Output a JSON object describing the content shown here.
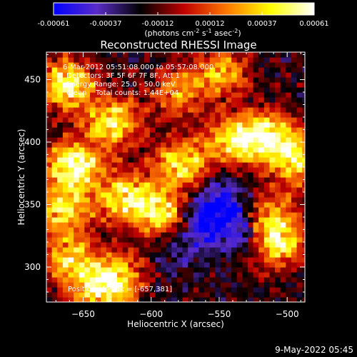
{
  "chart_data": {
    "type": "heatmap",
    "title": "Reconstructed RHESSI Image",
    "colorbar": {
      "ticks": [
        "-0.00061",
        "-0.00037",
        "-0.00012",
        "0.00012",
        "0.00037",
        "0.00061"
      ],
      "range": [
        -0.00061,
        0.00061
      ],
      "unit_label": {
        "p1": "(photons cm",
        "sup1": "-2",
        "p2": " s",
        "sup2": "-1",
        "p3": " asec",
        "sup3": "-2",
        "p4": ")"
      },
      "colors": [
        "#0000ff",
        "#5a2cc8",
        "#000000",
        "#c00000",
        "#ff7a00",
        "#ffff00",
        "#ffffff"
      ]
    },
    "xlabel": "Heliocentric X (arcsec)",
    "ylabel": "Heliocentric Y (arcsec)",
    "xlim": [
      -677,
      -487
    ],
    "ylim": [
      272,
      472
    ],
    "xticks": [
      -650,
      -600,
      -550,
      -500
    ],
    "yticks": [
      300,
      350,
      400,
      450
    ],
    "annotations": [
      "6-Mar-2012 05:51:08.000 to 05:57:08.000",
      "Detectors: 3F 5F 6F 7F 8F, Att 1",
      "Energy Range: 25.0 - 50.0 keV",
      "Clean    Total counts: 1.44E+04"
    ],
    "peak_label": "Position of Peak = [-657,381]",
    "peak": [
      -657,
      381
    ],
    "grid_resolution_arcsec": 4,
    "hot_spots": [
      {
        "x": -657,
        "y": 381,
        "v": 0.00061
      },
      {
        "x": -662,
        "y": 446,
        "v": 0.00052
      },
      {
        "x": -628,
        "y": 416,
        "v": 0.00045
      },
      {
        "x": -664,
        "y": 346,
        "v": 0.00041
      },
      {
        "x": -620,
        "y": 356,
        "v": 0.00043
      },
      {
        "x": -592,
        "y": 344,
        "v": 0.00047
      },
      {
        "x": -578,
        "y": 384,
        "v": 0.00042
      },
      {
        "x": -540,
        "y": 402,
        "v": 0.00039
      },
      {
        "x": -514,
        "y": 404,
        "v": 0.0005
      },
      {
        "x": -492,
        "y": 386,
        "v": 0.00036
      },
      {
        "x": -507,
        "y": 318,
        "v": 0.00038
      },
      {
        "x": -512,
        "y": 340,
        "v": 0.00034
      },
      {
        "x": -548,
        "y": 456,
        "v": 0.0003
      },
      {
        "x": -626,
        "y": 292,
        "v": 0.00036
      },
      {
        "x": -660,
        "y": 306,
        "v": 0.00032
      },
      {
        "x": -580,
        "y": 440,
        "v": 0.00025
      },
      {
        "x": -640,
        "y": 280,
        "v": 0.0003
      }
    ],
    "cold_spots": [
      {
        "x": -560,
        "y": 338,
        "v": -0.00058
      },
      {
        "x": -530,
        "y": 330,
        "v": -0.00045
      },
      {
        "x": -545,
        "y": 356,
        "v": -0.0004
      },
      {
        "x": -580,
        "y": 315,
        "v": -0.0003
      }
    ]
  },
  "timestamp": "9-May-2022 05:45"
}
